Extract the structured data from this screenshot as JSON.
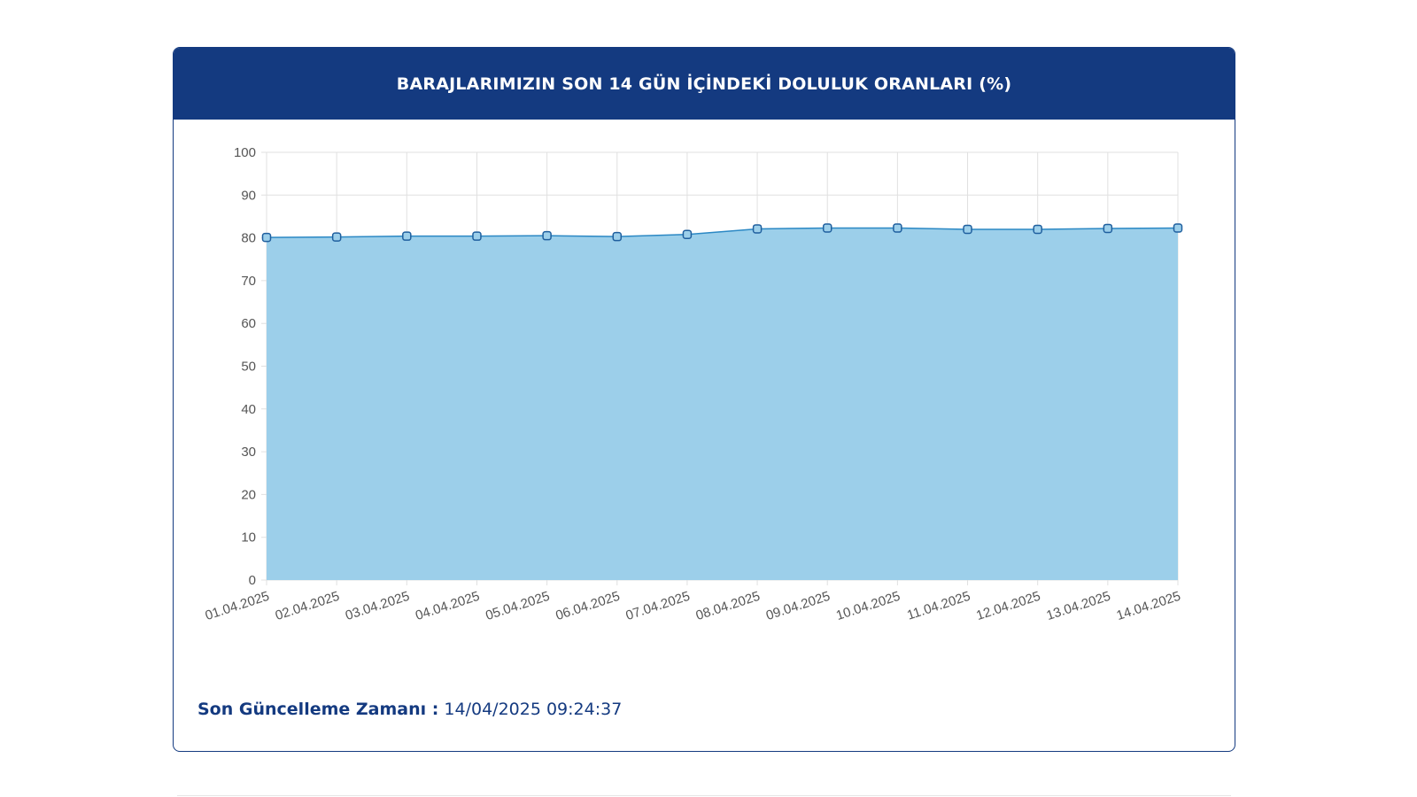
{
  "header": {
    "title": "BARAJLARIMIZIN SON 14 GÜN İÇİNDEKİ DOLULUK ORANLARI (%)"
  },
  "update": {
    "label": "Son Güncelleme Zamanı :",
    "value": "14/04/2025 09:24:37"
  },
  "colors": {
    "header": "#143a80",
    "area_fill": "#9ccfea",
    "line": "#2b88c4",
    "grid": "#e0e0e0",
    "tick_text": "#555555"
  },
  "chart_data": {
    "type": "area",
    "title": "BARAJLARIMIZIN SON 14 GÜN İÇİNDEKİ DOLULUK ORANLARI (%)",
    "xlabel": "",
    "ylabel": "",
    "ylim": [
      0,
      100
    ],
    "yticks": [
      0,
      10,
      20,
      30,
      40,
      50,
      60,
      70,
      80,
      90,
      100
    ],
    "grid": true,
    "legend": "none",
    "categories": [
      "01.04.2025",
      "02.04.2025",
      "03.04.2025",
      "04.04.2025",
      "05.04.2025",
      "06.04.2025",
      "07.04.2025",
      "08.04.2025",
      "09.04.2025",
      "10.04.2025",
      "11.04.2025",
      "12.04.2025",
      "13.04.2025",
      "14.04.2025"
    ],
    "series": [
      {
        "values": [
          80.1,
          80.2,
          80.4,
          80.4,
          80.5,
          80.3,
          80.8,
          82.1,
          82.3,
          82.3,
          82.0,
          82.0,
          82.2,
          82.3
        ]
      }
    ]
  }
}
